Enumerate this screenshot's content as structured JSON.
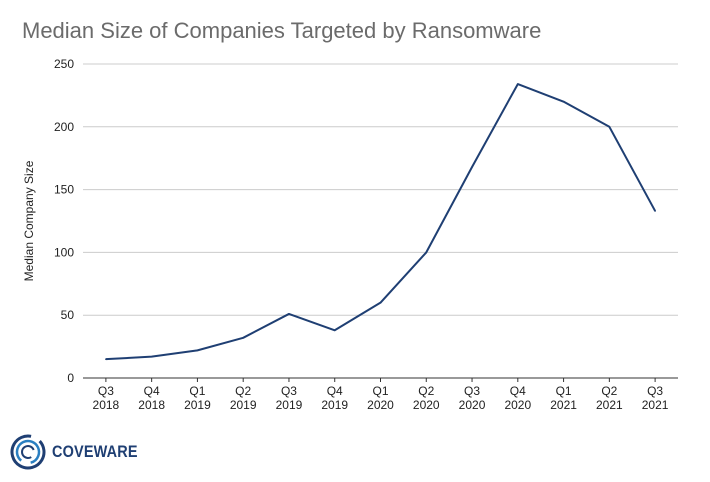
{
  "chart_data": {
    "type": "line",
    "title": "Median Size of Companies Targeted by Ransomware",
    "xlabel": "",
    "ylabel": "Median Company Size",
    "categories": [
      [
        "Q3",
        "2018"
      ],
      [
        "Q4",
        "2018"
      ],
      [
        "Q1",
        "2019"
      ],
      [
        "Q2",
        "2019"
      ],
      [
        "Q3",
        "2019"
      ],
      [
        "Q4",
        "2019"
      ],
      [
        "Q1",
        "2020"
      ],
      [
        "Q2",
        "2020"
      ],
      [
        "Q3",
        "2020"
      ],
      [
        "Q4",
        "2020"
      ],
      [
        "Q1",
        "2021"
      ],
      [
        "Q2",
        "2021"
      ],
      [
        "Q3",
        "2021"
      ]
    ],
    "series": [
      {
        "values": [
          15,
          17,
          22,
          32,
          51,
          38,
          60,
          100,
          168,
          234,
          220,
          200,
          133
        ]
      }
    ],
    "ylim": [
      0,
      250
    ],
    "yticks": [
      "0",
      "50",
      "100",
      "150",
      "200",
      "250"
    ],
    "grid": true,
    "line_color": "#1f3f73"
  },
  "logo": {
    "text": "COVEWARE"
  }
}
